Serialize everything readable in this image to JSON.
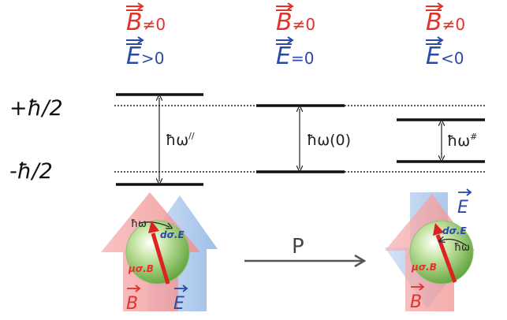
{
  "colors": {
    "b_field": "#e2322b",
    "e_field": "#2b49a6",
    "level_line": "#111111",
    "arrow_red_fill": "#f4a9a9",
    "arrow_blue_fill": "#a8c6ea",
    "sphere_green": "#7fbf56",
    "operator_arrow": "#555555"
  },
  "conditions": [
    {
      "b": "B",
      "b_rel": "≠0",
      "e": "E",
      "e_rel": ">0"
    },
    {
      "b": "B",
      "b_rel": "≠0",
      "e": "E",
      "e_rel": "=0"
    },
    {
      "b": "B",
      "b_rel": "≠0",
      "e": "E",
      "e_rel": "<0"
    }
  ],
  "levels": {
    "upper": "+ħ/2",
    "lower": "-ħ/2"
  },
  "splittings": [
    {
      "label": "ħω",
      "mark": "//"
    },
    {
      "label": "ħω(0)",
      "mark": ""
    },
    {
      "label": "ħω",
      "mark": "#"
    }
  ],
  "left_panel": {
    "omega_label": "ħω",
    "d_term": "dσ.E",
    "mu_term": "μσ.B",
    "b_label": "B",
    "e_label": "E"
  },
  "operator": {
    "label": "P"
  },
  "right_panel": {
    "e_label": "E",
    "d_term": "dσ.E",
    "omega_label": "ħω",
    "mu_term": "μσ.B",
    "b_label": "B"
  },
  "icons": [
    "big-up-arrow",
    "big-down-arrow",
    "sphere-icon",
    "spin-arrow-icon",
    "rotation-arrow-icon",
    "transform-arrow-icon"
  ]
}
